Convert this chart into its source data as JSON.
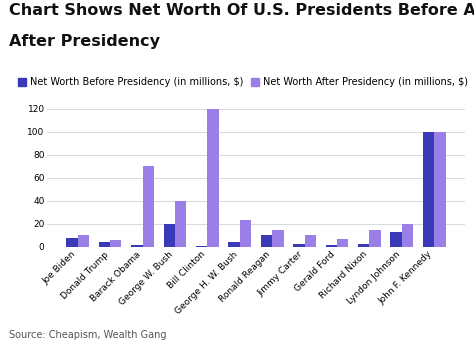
{
  "title_line1": "Chart Shows Net Worth Of U.S. Presidents Before And",
  "title_line2": "After Presidency",
  "presidents": [
    "Joe Biden",
    "Donald Trump",
    "Barack Obama",
    "George W. Bush",
    "Bill Clinton",
    "George H. W. Bush",
    "Ronald Reagan",
    "Jimmy Carter",
    "Gerald Ford",
    "Richard Nixon",
    "Lyndon Johnson",
    "John F. Kennedy"
  ],
  "before": [
    8,
    4,
    2,
    20,
    1,
    4,
    10,
    3,
    2,
    3,
    13,
    100
  ],
  "after": [
    10,
    6,
    70,
    40,
    120,
    23,
    15,
    10,
    7,
    15,
    20,
    100
  ],
  "color_before": "#3a3ab8",
  "color_after": "#9b7fe8",
  "legend_before": "Net Worth Before Presidency (in millions, $)",
  "legend_after": "Net Worth After Presidency (in millions, $)",
  "source": "Source: Cheapism, Wealth Gang",
  "ylim": [
    0,
    125
  ],
  "yticks": [
    0,
    20,
    40,
    60,
    80,
    100,
    120
  ],
  "background_color": "#ffffff",
  "title_fontsize": 11.5,
  "legend_fontsize": 7,
  "tick_fontsize": 6.5,
  "source_fontsize": 7
}
